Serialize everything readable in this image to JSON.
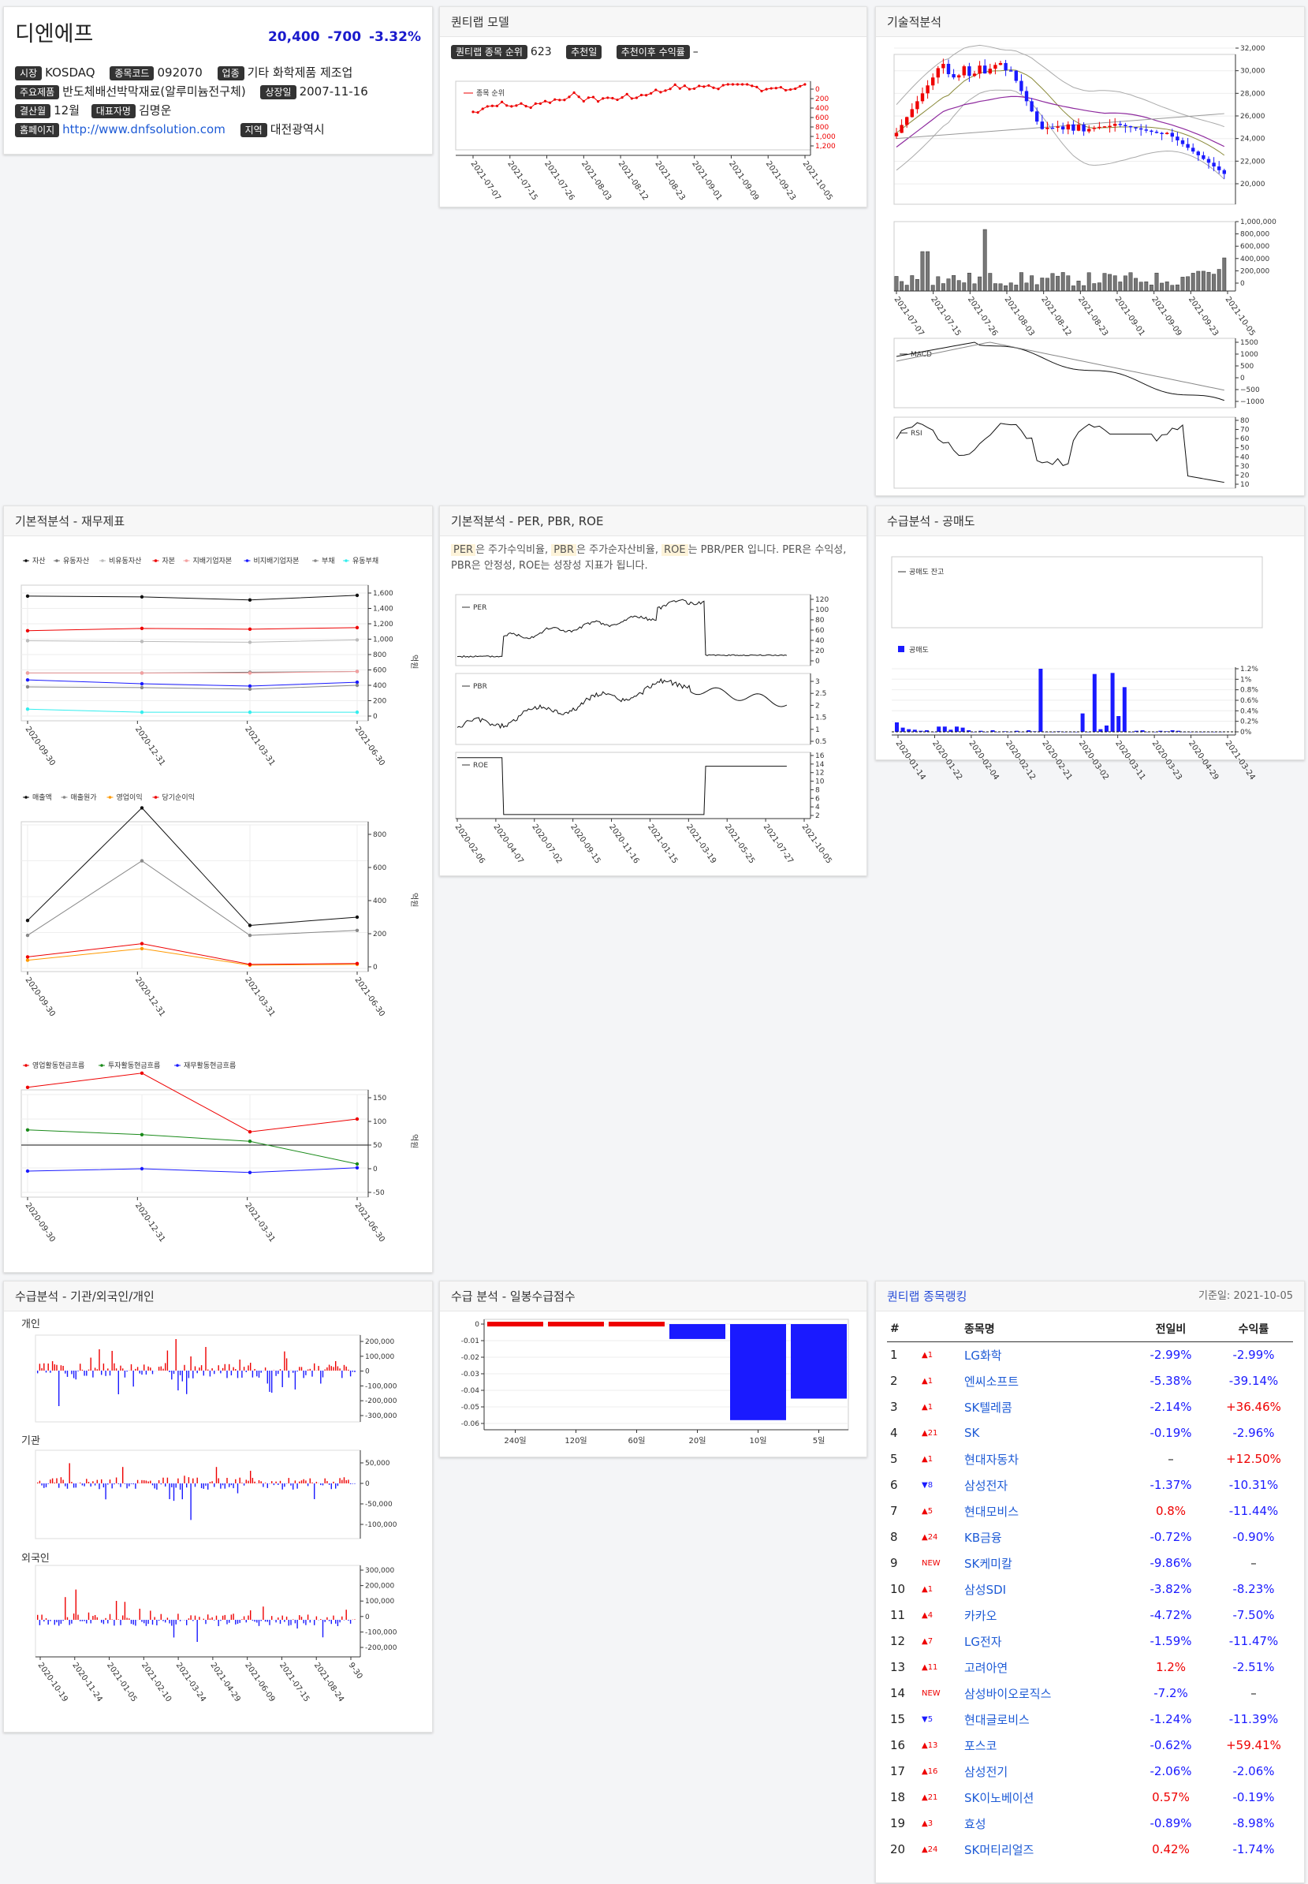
{
  "company": {
    "name": "디엔에프",
    "price": "20,400",
    "change": "-700",
    "change_pct": "-3.32%",
    "market_label": "시장",
    "market": "KOSDAQ",
    "code_label": "종목코드",
    "code": "092070",
    "sector_label": "업종",
    "sector": "기타 화학제품 제조업",
    "products_label": "주요제품",
    "products": "반도체배선박막재료(알루미늄전구체)",
    "listed_label": "상장일",
    "listed": "2007-11-16",
    "fiscal_label": "결산월",
    "fiscal": "12월",
    "ceo_label": "대표자명",
    "ceo": "김명운",
    "homepage_label": "홈페이지",
    "homepage": "http://www.dnfsolution.com",
    "region_label": "지역",
    "region": "대전광역시"
  },
  "quant": {
    "title": "퀀티랩 모델",
    "rank_label": "퀀티랩 종목 순위",
    "rank_value": "623",
    "rec_date_label": "추천일",
    "rec_return_label": "추천이후 수익률",
    "rec_return_value": "–",
    "legend": "종목 순위",
    "y_ticks": [
      "0",
      "200",
      "400",
      "600",
      "800",
      "1,000",
      "1,200"
    ],
    "x_ticks": [
      "2021-07-07",
      "2021-07-15",
      "2021-07-26",
      "2021-08-03",
      "2021-08-12",
      "2021-08-23",
      "2021-09-01",
      "2021-09-09",
      "2021-09-23",
      "2021-10-05"
    ]
  },
  "tech": {
    "title": "기술적분석",
    "price_ticks": [
      "32,000",
      "30,000",
      "28,000",
      "26,000",
      "24,000",
      "22,000",
      "20,000"
    ],
    "vol_ticks": [
      "1,000,000",
      "800,000",
      "600,000",
      "400,000",
      "200,000",
      "0"
    ],
    "x_ticks": [
      "2021-07-07",
      "2021-07-15",
      "2021-07-26",
      "2021-08-03",
      "2021-08-12",
      "2021-08-23",
      "2021-09-01",
      "2021-09-09",
      "2021-09-23",
      "2021-10-05"
    ],
    "macd_label": "MACD",
    "macd_ticks": [
      "1500",
      "1000",
      "500",
      "0",
      "−500",
      "−1000"
    ],
    "rsi_label": "RSI",
    "rsi_ticks": [
      "80",
      "70",
      "60",
      "50",
      "40",
      "30",
      "20",
      "10"
    ]
  },
  "fin": {
    "title": "기본적분석 - 재무제표",
    "legend1": [
      "자산",
      "유동자산",
      "비유동자산",
      "자본",
      "지배기업자본",
      "비지배기업자본",
      "부채",
      "유동부채"
    ],
    "ticks1": [
      "1,600",
      "1,400",
      "1,200",
      "1,000",
      "800",
      "600",
      "400",
      "200",
      "0"
    ],
    "legend2": [
      "매출액",
      "매출원가",
      "영업이익",
      "당기순이익"
    ],
    "ticks2": [
      "800",
      "600",
      "400",
      "200",
      "0"
    ],
    "legend3": [
      "영업활동현금흐름",
      "투자활동현금흐름",
      "재무활동현금흐름"
    ],
    "ticks3": [
      "150",
      "100",
      "50",
      "0",
      "-50"
    ],
    "unit": "억원",
    "x_ticks": [
      "2020-09-30",
      "2020-12-31",
      "2021-03-31",
      "2021-06-30"
    ]
  },
  "per": {
    "title": "기본적분석 - PER, PBR, ROE",
    "desc_per": "PER",
    "desc_1": "은 주가수익비율, ",
    "desc_pbr": "PBR",
    "desc_2": "은 주가순자산비율, ",
    "desc_roe": "ROE",
    "desc_3": "는 PBR/PER 입니다. PER은 수익성, PBR은 안정성, ROE는 성장성 지표가 됩니다.",
    "per_label": "PER",
    "per_ticks": [
      "120",
      "100",
      "80",
      "60",
      "40",
      "20",
      "0"
    ],
    "pbr_label": "PBR",
    "pbr_ticks": [
      "3",
      "2.5",
      "2",
      "1.5",
      "1",
      "0.5"
    ],
    "roe_label": "ROE",
    "roe_ticks": [
      "16",
      "14",
      "12",
      "10",
      "8",
      "6",
      "4",
      "2"
    ],
    "x_ticks": [
      "2020-02-06",
      "2020-04-07",
      "2020-07-02",
      "2020-09-15",
      "2020-11-16",
      "2021-01-15",
      "2021-03-19",
      "2021-05-25",
      "2021-07-27",
      "2021-10-05"
    ]
  },
  "short": {
    "title": "수급분석 - 공매도",
    "balance_label": "공매도 잔고",
    "short_label": "공매도",
    "ticks": [
      "1.2%",
      "1%",
      "0.8%",
      "0.6%",
      "0.4%",
      "0.2%",
      "0%"
    ],
    "x_ticks": [
      "2020-01-14",
      "2020-01-22",
      "2020-02-04",
      "2020-02-12",
      "2020-02-21",
      "2020-03-02",
      "2020-03-11",
      "2020-03-23",
      "2020-04-29",
      "2021-03-24"
    ]
  },
  "flow": {
    "title": "수급분석 - 기관/외국인/개인",
    "indiv_label": "개인",
    "indiv_ticks": [
      "200,000",
      "100,000",
      "0",
      "-100,000",
      "-200,000",
      "-300,000"
    ],
    "inst_label": "기관",
    "inst_ticks": [
      "50,000",
      "0",
      "-50,000",
      "-100,000"
    ],
    "foreign_label": "외국인",
    "foreign_ticks": [
      "300,000",
      "200,000",
      "100,000",
      "0",
      "-100,000",
      "-200,000"
    ],
    "x_ticks": [
      "2020-10-19",
      "2020-11-24",
      "2021-01-05",
      "2021-02-10",
      "2021-03-24",
      "2021-04-29",
      "2021-06-09",
      "2021-07-15",
      "2021-08-24",
      "9-30"
    ]
  },
  "score": {
    "title": "수급 분석 - 일봉수급점수",
    "ticks": [
      "0",
      "-0.01",
      "-0.02",
      "-0.03",
      "-0.04",
      "-0.05",
      "-0.06"
    ],
    "categories": [
      "240일",
      "120일",
      "60일",
      "20일",
      "10일",
      "5일"
    ],
    "values": [
      0.001,
      0.001,
      0.001,
      -0.009,
      -0.058,
      -0.045
    ]
  },
  "ranking": {
    "title": "퀀티랩 종목랭킹",
    "date_label": "기준일: 2021-10-05",
    "headers": [
      "#",
      "",
      "종목명",
      "전일비",
      "수익률"
    ],
    "rows": [
      {
        "n": "1",
        "mv": "▲1",
        "dir": "up",
        "name": "LG화학",
        "day": "-2.99%",
        "ret": "-2.99%"
      },
      {
        "n": "2",
        "mv": "▲1",
        "dir": "up",
        "name": "엔씨소프트",
        "day": "-5.38%",
        "ret": "-39.14%"
      },
      {
        "n": "3",
        "mv": "▲1",
        "dir": "up",
        "name": "SK텔레콤",
        "day": "-2.14%",
        "ret": "+36.46%"
      },
      {
        "n": "4",
        "mv": "▲21",
        "dir": "up",
        "name": "SK",
        "day": "-0.19%",
        "ret": "-2.96%"
      },
      {
        "n": "5",
        "mv": "▲1",
        "dir": "up",
        "name": "현대자동차",
        "day": "–",
        "ret": "+12.50%"
      },
      {
        "n": "6",
        "mv": "▼8",
        "dir": "down",
        "name": "삼성전자",
        "day": "-1.37%",
        "ret": "-10.31%"
      },
      {
        "n": "7",
        "mv": "▲5",
        "dir": "up",
        "name": "현대모비스",
        "day": "0.8%",
        "ret": "-11.44%"
      },
      {
        "n": "8",
        "mv": "▲24",
        "dir": "up",
        "name": "KB금융",
        "day": "-0.72%",
        "ret": "-0.90%"
      },
      {
        "n": "9",
        "mv": "NEW",
        "dir": "new",
        "name": "SK케미칼",
        "day": "-9.86%",
        "ret": "–"
      },
      {
        "n": "10",
        "mv": "▲1",
        "dir": "up",
        "name": "삼성SDI",
        "day": "-3.82%",
        "ret": "-8.23%"
      },
      {
        "n": "11",
        "mv": "▲4",
        "dir": "up",
        "name": "카카오",
        "day": "-4.72%",
        "ret": "-7.50%"
      },
      {
        "n": "12",
        "mv": "▲7",
        "dir": "up",
        "name": "LG전자",
        "day": "-1.59%",
        "ret": "-11.47%"
      },
      {
        "n": "13",
        "mv": "▲11",
        "dir": "up",
        "name": "고려아연",
        "day": "1.2%",
        "ret": "-2.51%"
      },
      {
        "n": "14",
        "mv": "NEW",
        "dir": "new",
        "name": "삼성바이오로직스",
        "day": "-7.2%",
        "ret": "–"
      },
      {
        "n": "15",
        "mv": "▼5",
        "dir": "down",
        "name": "현대글로비스",
        "day": "-1.24%",
        "ret": "-11.39%"
      },
      {
        "n": "16",
        "mv": "▲13",
        "dir": "up",
        "name": "포스코",
        "day": "-0.62%",
        "ret": "+59.41%"
      },
      {
        "n": "17",
        "mv": "▲16",
        "dir": "up",
        "name": "삼성전기",
        "day": "-2.06%",
        "ret": "-2.06%"
      },
      {
        "n": "18",
        "mv": "▲21",
        "dir": "up",
        "name": "SK이노베이션",
        "day": "0.57%",
        "ret": "-0.19%"
      },
      {
        "n": "19",
        "mv": "▲3",
        "dir": "up",
        "name": "효성",
        "day": "-0.89%",
        "ret": "-8.98%"
      },
      {
        "n": "20",
        "mv": "▲24",
        "dir": "up",
        "name": "SK머티리얼즈",
        "day": "0.42%",
        "ret": "-1.74%"
      }
    ]
  }
}
